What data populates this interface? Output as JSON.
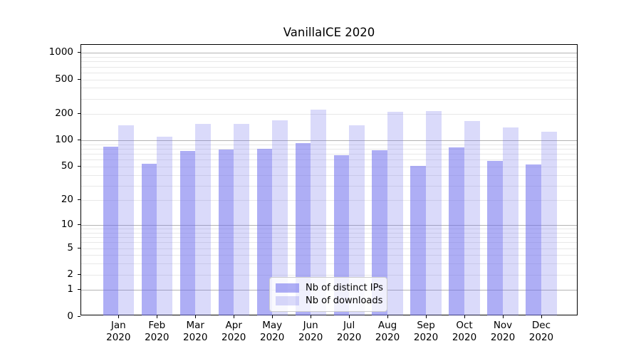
{
  "chart_data": {
    "type": "bar",
    "title": "VanillaICE 2020",
    "categories": [
      "Jan",
      "Feb",
      "Mar",
      "Apr",
      "May",
      "Jun",
      "Jul",
      "Aug",
      "Sep",
      "Oct",
      "Nov",
      "Dec"
    ],
    "category_year": "2020",
    "series": [
      {
        "name": "Nb of distinct IPs",
        "color": "rgba(107,107,237,0.55)",
        "values": [
          84,
          53,
          74,
          77,
          79,
          92,
          66,
          76,
          50,
          82,
          57,
          52
        ]
      },
      {
        "name": "Nb of downloads",
        "color": "rgba(107,107,237,0.25)",
        "values": [
          147,
          108,
          151,
          153,
          167,
          222,
          146,
          210,
          213,
          163,
          138,
          124
        ]
      }
    ],
    "xlabel": "",
    "ylabel": "",
    "yscale": "log10(1+y)",
    "ylim": [
      0,
      1050
    ],
    "y_tick_labels": [
      "1000",
      "500",
      "200",
      "100",
      "50",
      "20",
      "10",
      "5",
      "2",
      "1",
      "0"
    ],
    "y_tick_values": [
      1000,
      500,
      200,
      100,
      50,
      20,
      10,
      5,
      2,
      1,
      0
    ],
    "grid": {
      "major_values": [
        1,
        10,
        100,
        1000
      ],
      "minor_values": [
        2,
        3,
        4,
        5,
        6,
        7,
        8,
        9,
        20,
        30,
        40,
        50,
        60,
        70,
        80,
        90,
        200,
        300,
        400,
        500,
        600,
        700,
        800,
        900
      ],
      "major_color": "#b4b4b4",
      "minor_color": "#e8e8e8"
    },
    "legend": {
      "position": "lower-center",
      "entries": [
        "Nb of distinct IPs",
        "Nb of downloads"
      ]
    }
  }
}
